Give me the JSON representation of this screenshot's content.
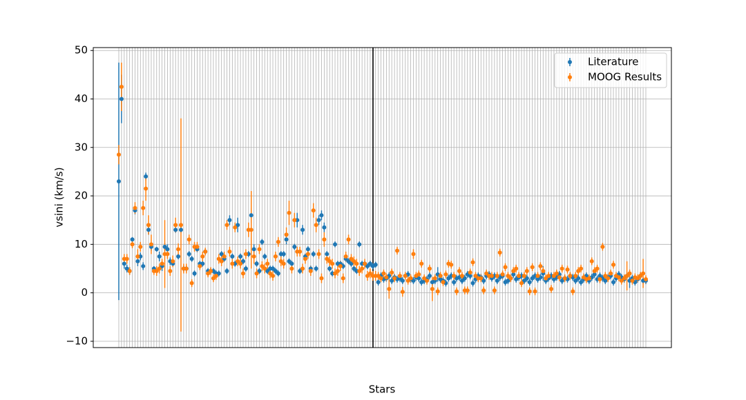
{
  "chart_data": {
    "type": "errorbar",
    "x_label": "Stars",
    "y_label": "vsini (km/s)",
    "ylim": [
      -11.3,
      50.6
    ],
    "yticks": [
      {
        "value": -10,
        "label": "−10"
      },
      0,
      10,
      20,
      30,
      40,
      50
    ],
    "grid": true,
    "legend": "upper right",
    "categories": [
      null,
      null,
      null,
      null,
      null,
      null,
      null,
      null,
      null,
      null,
      null,
      null,
      null,
      null,
      null,
      null,
      null,
      null,
      null,
      null,
      null,
      null,
      null,
      null,
      null,
      null,
      null,
      null,
      null,
      null,
      null,
      null,
      null,
      null,
      null,
      null,
      null,
      null,
      null,
      null,
      null,
      null,
      null,
      null,
      null,
      null,
      null,
      null,
      null,
      null,
      null,
      null,
      null,
      null,
      null,
      null,
      null,
      null,
      null,
      null,
      null,
      null,
      null,
      null,
      null,
      null,
      null,
      null,
      null,
      null,
      null,
      null,
      null,
      null,
      null,
      null,
      null,
      null,
      null,
      null,
      null,
      null,
      null,
      null,
      null,
      null,
      null,
      null,
      null,
      null,
      null,
      null,
      null,
      null,
      null,
      null,
      null,
      null,
      null,
      null,
      null,
      null,
      null,
      null,
      null,
      null,
      null,
      null,
      null,
      null,
      null,
      null,
      null,
      null,
      null,
      null,
      null,
      null,
      null,
      null,
      null,
      null,
      null,
      null,
      null,
      null,
      null,
      null,
      null,
      null,
      null,
      null,
      null,
      null,
      null,
      null,
      null,
      null,
      null,
      null,
      null,
      null,
      null,
      null,
      null,
      null,
      null,
      null,
      null,
      null,
      null,
      null,
      null,
      null,
      null,
      null,
      null,
      null,
      null,
      null,
      null,
      null,
      null,
      null,
      null,
      null,
      null,
      null,
      null,
      null,
      null,
      null,
      null,
      null,
      null,
      null,
      null,
      null,
      null,
      null,
      null,
      null,
      null,
      null,
      null,
      null,
      null,
      null,
      null,
      null,
      null,
      null,
      null,
      null,
      null,
      null
    ],
    "series": [
      {
        "name": "Literature",
        "color": "#1f77b4",
        "values": [
          23,
          40,
          6,
          5,
          4.5,
          11,
          17,
          6.5,
          7.5,
          5.5,
          24,
          13,
          9.5,
          5,
          9,
          7.5,
          5.5,
          9.5,
          9,
          6.5,
          6,
          13,
          7.5,
          13,
          5,
          5,
          8,
          7,
          4,
          9,
          6,
          6,
          8.5,
          4.5,
          4.5,
          4.5,
          4,
          4,
          8,
          7,
          4.5,
          15,
          7.5,
          6,
          14,
          7.5,
          6.5,
          5,
          8,
          16,
          9,
          6,
          4.5,
          10.5,
          7.5,
          4.5,
          5,
          5,
          4.5,
          4,
          8,
          8,
          11,
          6.5,
          6,
          9.5,
          15,
          4.5,
          13,
          7.5,
          9,
          5,
          8,
          5,
          15,
          16,
          13.5,
          8,
          5,
          4,
          10,
          6,
          6,
          5.5,
          7,
          6.5,
          6,
          5,
          4.5,
          10,
          6,
          6,
          5.5,
          6,
          5.5,
          5.8,
          2.2,
          3.5,
          2.8,
          3,
          3.5,
          2.5,
          3.2,
          2.8,
          3,
          2.5,
          3.5,
          3.8,
          2.8,
          2.5,
          3.2,
          3,
          2.2,
          2.5,
          2.8,
          3.5,
          2.2,
          2.5,
          3.8,
          2.8,
          2.5,
          2,
          3,
          3.5,
          2.2,
          3,
          3.2,
          2.5,
          3,
          3.8,
          3.5,
          2,
          2.8,
          3.5,
          3.2,
          2.5,
          3.5,
          3.8,
          3,
          3.5,
          2.5,
          3.2,
          3.5,
          2.2,
          2.5,
          3,
          3.8,
          2.8,
          3.2,
          3.5,
          2.5,
          3,
          2.2,
          3,
          3.5,
          2.8,
          3.2,
          4,
          2.5,
          3,
          3.5,
          2.8,
          3.2,
          3.8,
          2.5,
          3,
          2.8,
          3.5,
          3.2,
          2.5,
          3,
          2.2,
          2.8,
          3.5,
          2.5,
          3.2,
          3.8,
          2.8,
          3.5,
          3,
          2.5,
          3.2,
          3.5,
          2.2,
          3,
          3.8,
          3.2,
          2.8,
          3.5,
          2.5,
          3,
          2.2,
          2.8,
          3.5,
          2.5,
          2.5
        ],
        "errors": [
          24.5,
          5,
          1,
          0.8,
          0.8,
          0.5,
          0.8,
          1,
          0.8,
          0.8,
          0.8,
          1,
          0.8,
          0.5,
          0.5,
          1,
          1,
          0.8,
          1,
          0.8,
          0.6,
          0.6,
          0.6,
          0.6,
          0.6,
          0.6,
          0.6,
          0.6,
          0.6,
          0.6,
          0.6,
          0.6,
          0.6,
          0.6,
          0.6,
          0.6,
          0.6,
          0.6,
          0.6,
          0.6,
          0.6,
          1,
          0.6,
          0.6,
          1.5,
          0.6,
          0.6,
          0.6,
          0.6,
          1.5,
          1,
          0.6,
          0.6,
          0.6,
          0.6,
          0.6,
          0.6,
          0.6,
          0.6,
          0.6,
          0.6,
          0.6,
          1,
          0.6,
          0.6,
          0.6,
          1.5,
          0.6,
          1,
          0.6,
          0.6,
          0.6,
          0.6,
          0.6,
          1,
          1,
          1,
          0.6,
          0.6,
          0.6,
          0.6,
          0.6,
          0.6,
          0.6,
          0.6,
          0.6,
          0.6,
          0.6,
          0.6,
          0.6,
          0.6,
          0.6,
          0.6,
          0.6,
          0.6,
          0.6,
          0.7,
          0.7,
          0.7,
          0.7,
          0.7,
          0.7,
          0.7,
          0.7,
          0.7,
          0.7,
          0.7,
          0.7,
          0.7,
          0.7,
          0.7,
          0.7,
          0.7,
          0.7,
          0.7,
          0.7,
          0.7,
          0.7,
          1.5,
          0.7,
          0.7,
          0.7,
          0.7,
          0.7,
          0.7,
          0.7,
          0.7,
          0.7,
          0.7,
          0.7,
          0.7,
          0.7,
          0.7,
          0.7,
          0.7,
          0.7,
          0.7,
          0.7,
          0.7,
          0.7,
          0.7,
          0.7,
          0.7,
          0.7,
          0.7,
          0.7,
          0.7,
          0.7,
          0.7,
          0.7,
          0.7,
          0.7,
          0.7,
          0.7,
          0.7,
          0.7,
          0.7,
          1.5,
          0.7,
          0.7,
          0.7,
          0.7,
          0.7,
          0.7,
          0.7,
          0.7,
          0.7,
          0.7,
          0.7,
          0.7,
          0.7,
          0.7,
          0.7,
          0.7,
          0.7,
          0.7,
          0.7,
          0.7,
          0.7,
          0.7,
          0.7,
          0.7,
          0.7,
          0.7,
          0.7,
          0.7,
          0.7,
          0.7,
          0.7,
          1.5,
          0.7,
          0.7,
          0.7,
          0.7,
          0.7,
          0.7
        ]
      },
      {
        "name": "MOOG Results",
        "color": "#ff7f0e",
        "values": [
          28.5,
          42.5,
          7,
          7,
          4.5,
          10,
          17.5,
          7.5,
          9.5,
          17.5,
          21.5,
          14,
          10,
          4.5,
          4.5,
          5,
          6,
          8,
          8,
          4.5,
          6.5,
          14,
          9,
          14,
          5,
          5,
          11,
          2,
          9.5,
          9.5,
          5.5,
          7.5,
          8.5,
          4,
          4.5,
          3,
          3.5,
          7,
          6.5,
          7.5,
          14,
          8.5,
          6,
          13.5,
          6.5,
          6,
          4,
          8,
          13,
          13,
          7.5,
          4,
          9,
          5.5,
          5,
          6,
          4,
          3.5,
          7.5,
          10.5,
          6.5,
          6,
          12,
          16.5,
          5,
          15,
          8.5,
          8.5,
          5,
          7,
          8,
          4.5,
          17,
          14,
          8,
          3,
          11,
          7,
          6.5,
          6,
          4,
          4.5,
          5.5,
          3,
          7.5,
          11,
          7,
          6.5,
          6,
          4.5,
          5,
          6,
          3.5,
          4,
          3.5,
          3.5,
          3.5,
          3,
          4,
          3.2,
          0.8,
          4.2,
          3,
          8.7,
          3.5,
          0.2,
          3.5,
          2.5,
          3,
          8,
          3.5,
          3.8,
          6,
          3,
          2.5,
          5,
          0.8,
          3,
          0.3,
          3.5,
          2.2,
          3.8,
          6,
          5.8,
          3.5,
          0.3,
          4.5,
          3.5,
          0.5,
          0.5,
          4.2,
          6.3,
          3.5,
          3,
          3,
          0.5,
          4,
          3.5,
          3.5,
          0.5,
          3.5,
          8.3,
          3.8,
          5.3,
          3.5,
          3,
          4.5,
          5,
          3.5,
          2,
          3.5,
          4.5,
          0.3,
          5.3,
          0.3,
          3.5,
          5.5,
          4.5,
          3,
          3.5,
          0.8,
          3.5,
          4,
          3.2,
          5,
          3,
          4.8,
          3.5,
          0.3,
          3.5,
          4.5,
          5,
          3.2,
          2.8,
          3,
          6.5,
          4.5,
          5,
          2.8,
          9.5,
          3.5,
          3,
          4,
          5.8,
          3.5,
          3.2,
          2.5,
          3,
          3.5,
          4,
          2.5,
          3.2,
          3,
          3.5,
          4,
          2.8
        ],
        "errors": [
          2,
          5,
          1,
          1,
          0.8,
          0.8,
          1.2,
          1.5,
          1,
          1.5,
          2.5,
          2,
          2,
          0.8,
          1,
          1,
          1,
          7,
          1,
          1,
          1.2,
          1.5,
          1.2,
          22,
          1,
          1,
          1,
          0.8,
          1,
          1,
          0.8,
          1,
          0.8,
          0.8,
          0.8,
          0.8,
          0.8,
          1,
          1,
          1,
          1,
          1,
          1,
          1,
          1,
          1,
          1,
          1,
          1.5,
          8,
          1.5,
          1,
          1,
          1,
          1,
          1,
          1,
          1,
          1,
          1,
          1,
          1,
          1.5,
          2.5,
          1,
          1.5,
          1,
          1,
          1,
          1,
          1,
          1,
          1.5,
          1.5,
          1,
          1,
          1.5,
          1,
          1,
          1,
          1,
          1,
          1,
          1,
          1,
          1,
          1,
          1,
          1,
          1,
          1,
          1,
          1,
          1,
          1,
          1,
          0.8,
          0.8,
          0.8,
          0.8,
          2,
          0.8,
          0.8,
          0.8,
          0.8,
          1,
          0.8,
          0.8,
          0.8,
          1,
          0.8,
          0.8,
          0.8,
          0.8,
          0.8,
          0.8,
          2.5,
          0.8,
          0.8,
          0.8,
          0.8,
          0.8,
          0.8,
          0.8,
          0.8,
          0.8,
          0.8,
          0.8,
          0.8,
          0.8,
          0.8,
          0.8,
          0.8,
          0.8,
          0.8,
          0.8,
          0.8,
          0.8,
          0.8,
          0.8,
          0.8,
          0.8,
          0.8,
          0.8,
          0.8,
          0.8,
          0.8,
          0.8,
          0.8,
          0.8,
          0.8,
          0.8,
          0.8,
          0.8,
          0.8,
          0.8,
          0.8,
          0.8,
          0.8,
          0.8,
          0.8,
          0.8,
          0.8,
          0.8,
          0.8,
          0.8,
          0.8,
          0.8,
          0.8,
          0.8,
          0.8,
          0.8,
          0.8,
          0.8,
          0.8,
          0.8,
          0.8,
          0.8,
          0.8,
          0.8,
          0.8,
          0.8,
          0.8,
          0.8,
          0.8,
          0.8,
          0.8,
          0.8,
          3,
          0.8,
          0.8,
          0.8,
          0.8,
          0.8,
          3,
          0.8
        ]
      }
    ]
  }
}
